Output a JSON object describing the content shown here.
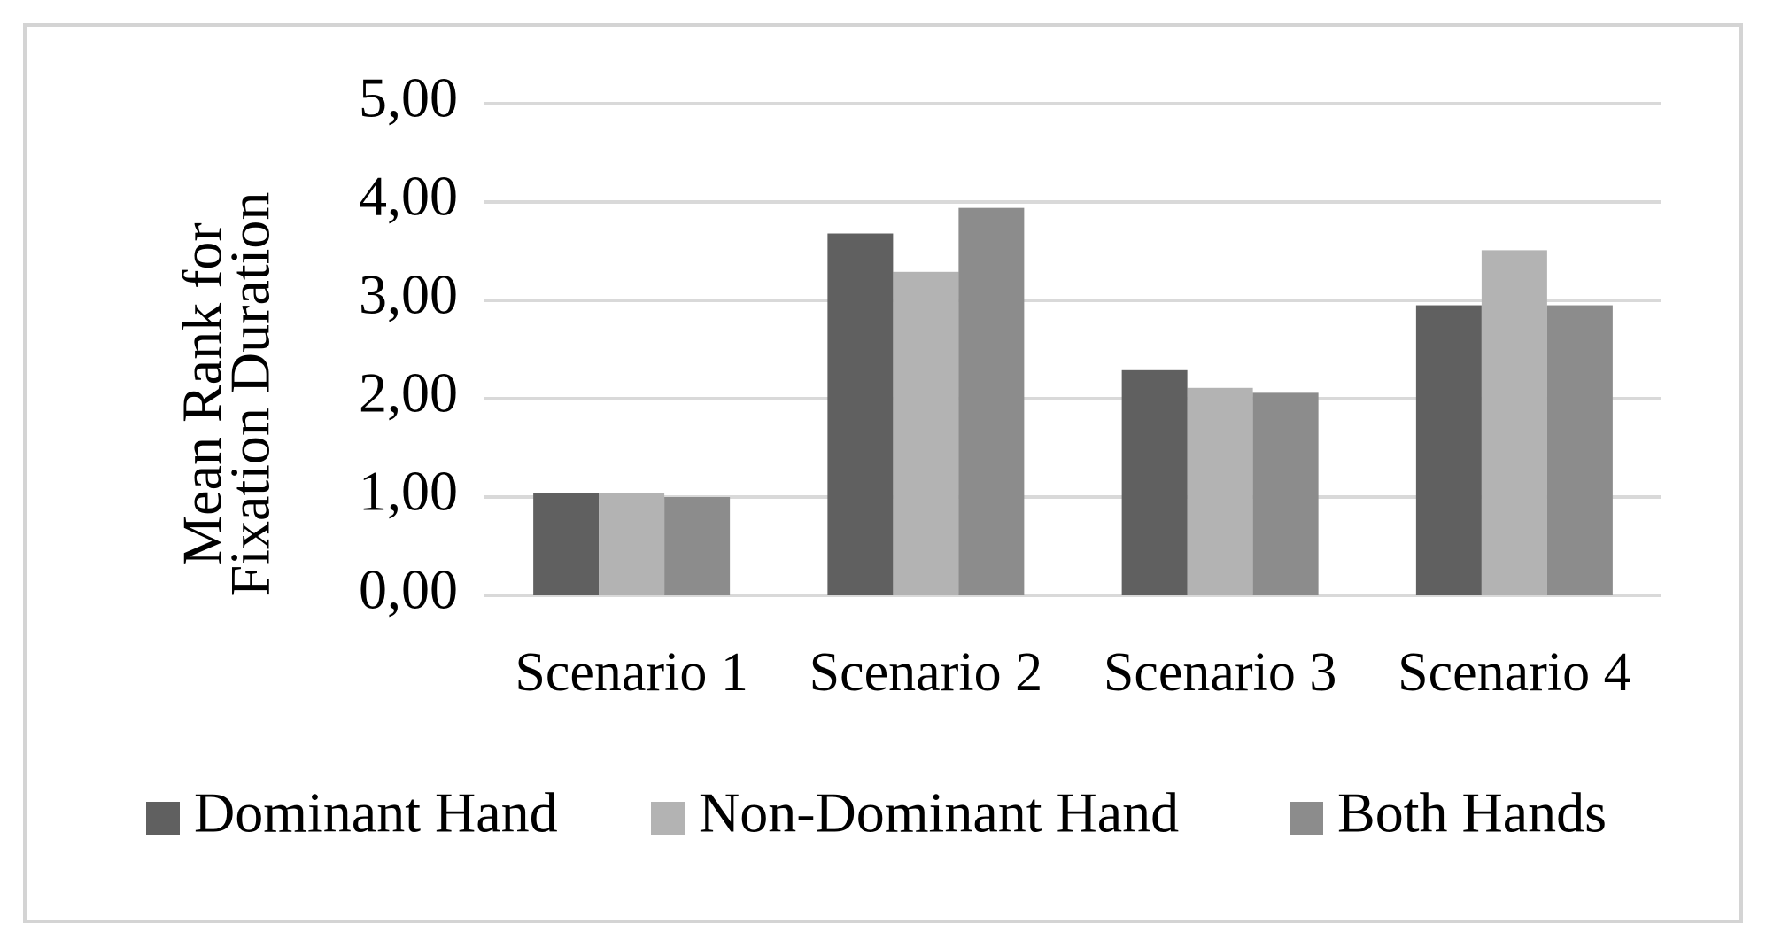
{
  "chart_data": {
    "type": "bar",
    "ylabel": [
      "Mean Rank for",
      "Fixation Duration"
    ],
    "categories": [
      "Scenario 1",
      "Scenario 2",
      "Scenario 3",
      "Scenario 4"
    ],
    "series": [
      {
        "name": "Dominant Hand",
        "color": "#606060",
        "values": [
          1.04,
          3.68,
          2.29,
          2.95
        ]
      },
      {
        "name": "Non-Dominant Hand",
        "color": "#b3b3b3",
        "values": [
          1.04,
          3.29,
          2.11,
          3.51
        ]
      },
      {
        "name": "Both Hands",
        "color": "#8c8c8c",
        "values": [
          1.0,
          3.94,
          2.06,
          2.95
        ]
      }
    ],
    "ylim": [
      0,
      5
    ],
    "yticks": [
      {
        "value": 0,
        "label": "0,00"
      },
      {
        "value": 1,
        "label": "1,00"
      },
      {
        "value": 2,
        "label": "2,00"
      },
      {
        "value": 3,
        "label": "3,00"
      },
      {
        "value": 4,
        "label": "4,00"
      },
      {
        "value": 5,
        "label": "5,00"
      }
    ],
    "grid": true,
    "legend": "bottom"
  }
}
